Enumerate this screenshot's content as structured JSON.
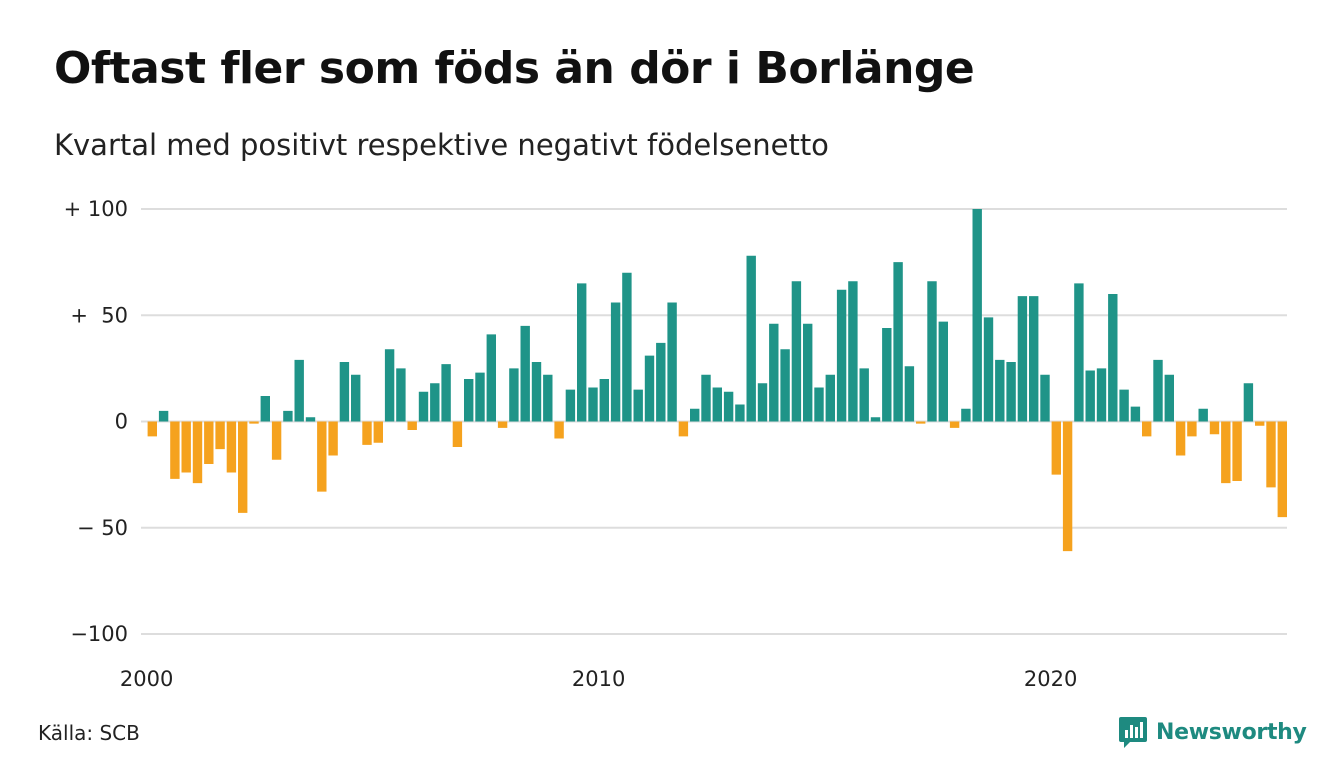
{
  "header": {
    "title": "Oftast fler som föds än dör i Borlänge",
    "subtitle": "Kvartal med positivt respektive negativt födelsenetto"
  },
  "footer": {
    "source": "Källa: SCB",
    "brand": "Newsworthy",
    "brand_icon": "newsworthy-logo-icon"
  },
  "colors": {
    "positive": "#1f9488",
    "negative": "#f5a21e",
    "grid": "#dddddd",
    "brand": "#1e8a80"
  },
  "chart_data": {
    "type": "bar",
    "title": "Oftast fler som föds än dör i Borlänge",
    "subtitle": "Kvartal med positivt respektive negativt födelsenetto",
    "xlabel": "",
    "ylabel": "",
    "ylim": [
      -100,
      100
    ],
    "y_ticks": [
      {
        "value": 100,
        "label": "+ 100"
      },
      {
        "value": 50,
        "label": "+  50"
      },
      {
        "value": 0,
        "label": "0"
      },
      {
        "value": -50,
        "label": "− 50"
      },
      {
        "value": -100,
        "label": "−100"
      }
    ],
    "x_ticks": [
      {
        "value": "2000",
        "label": "2000"
      },
      {
        "value": "2010",
        "label": "2010"
      },
      {
        "value": "2020",
        "label": "2020"
      }
    ],
    "grid": true,
    "legend": "none",
    "first_period": "2000Q1",
    "series": [
      {
        "values": [
          -7,
          5,
          -27,
          -24,
          -29,
          -20,
          -13,
          -24,
          -43,
          -1,
          12,
          -18,
          5,
          29,
          2,
          -33,
          -16,
          28,
          22,
          -11,
          -10,
          34,
          25,
          -4,
          14,
          18,
          27,
          -12,
          20,
          23,
          41,
          -3,
          25,
          45,
          28,
          22,
          -8,
          15,
          65,
          16,
          20,
          56,
          70,
          15,
          31,
          37,
          56,
          -7,
          6,
          22,
          16,
          14,
          8,
          78,
          18,
          46,
          34,
          66,
          46,
          16,
          22,
          62,
          66,
          25,
          2,
          44,
          75,
          26,
          -1,
          66,
          47,
          -3,
          6,
          100,
          49,
          29,
          28,
          59,
          59,
          22,
          -25,
          -61,
          65,
          24,
          25,
          60,
          15,
          7,
          -7,
          29,
          22,
          -16,
          -7,
          6,
          -6,
          -29,
          -28,
          18,
          -2,
          -31,
          -45
        ]
      }
    ]
  }
}
